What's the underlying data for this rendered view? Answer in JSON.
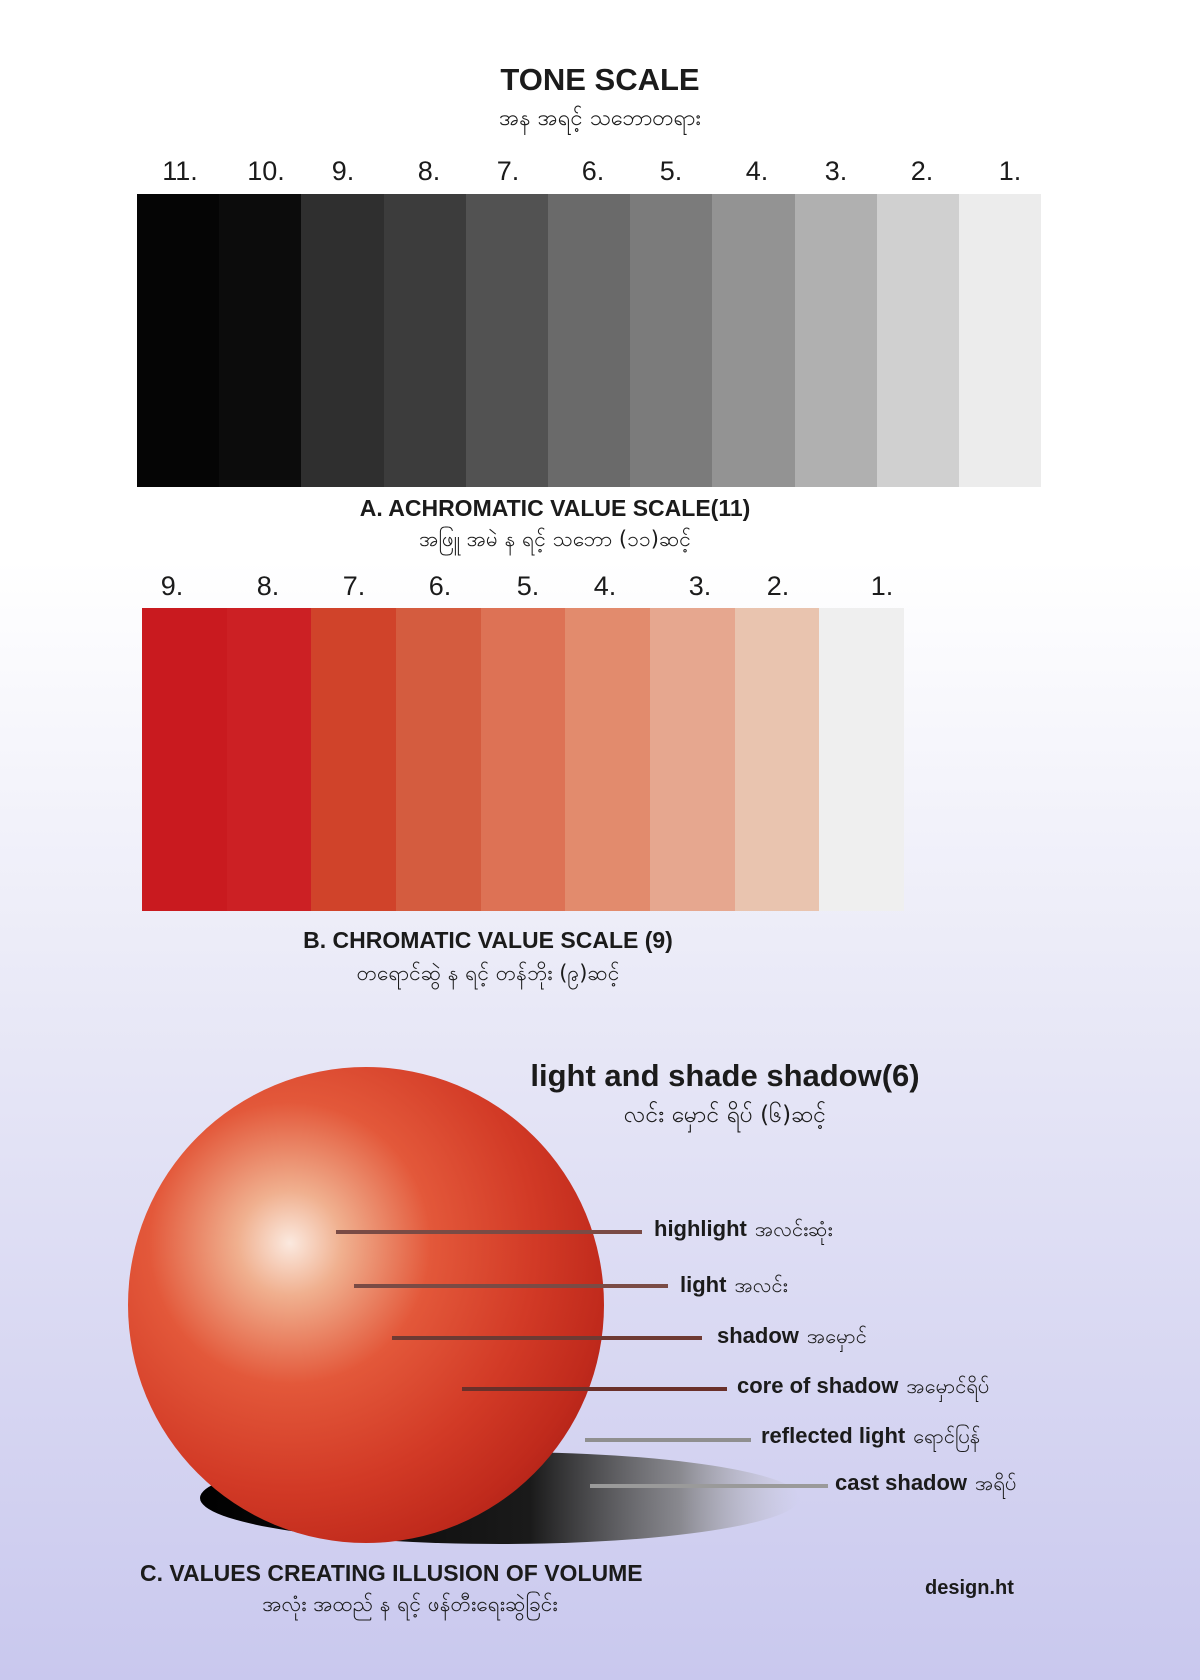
{
  "header": {
    "title": "TONE SCALE",
    "subtitle": "အန အရင့် သဘောတရား"
  },
  "achromatic": {
    "numbers": [
      "11.",
      "10.",
      "9.",
      "8.",
      "7.",
      "6.",
      "5.",
      "4.",
      "3.",
      "2.",
      "1."
    ],
    "swatch_colors": [
      "#050505",
      "#0c0c0c",
      "#2f2f2f",
      "#3c3c3c",
      "#525252",
      "#6a6a6a",
      "#7b7b7b",
      "#939393",
      "#b0b0b0",
      "#d0d0d0",
      "#ececec"
    ],
    "caption": "A. ACHROMATIC VALUE SCALE(11)",
    "caption_sub": "အဖြူ အမဲ န ရင့် သဘော (၁၁)ဆင့်"
  },
  "chromatic": {
    "numbers": [
      "9.",
      "8.",
      "7.",
      "6.",
      "5.",
      "4.",
      "3.",
      "2.",
      "1."
    ],
    "swatch_colors": [
      "#c91a1f",
      "#cc2024",
      "#d0432a",
      "#d45c3f",
      "#dd7255",
      "#e28b6d",
      "#e6a78f",
      "#e9c4af",
      "#efefef"
    ],
    "caption": "B. CHROMATIC VALUE SCALE (9)",
    "caption_sub": "တရောင်ဆွဲ န ရင့် တန်ဘိုး (၉)ဆင့်"
  },
  "volume": {
    "heading": "light and shade shadow(6)",
    "heading_sub": "လင်း မှောင် ရိပ် (၆)ဆင့်",
    "labels": [
      {
        "en": "highlight",
        "mm": "အလင်းဆုံး"
      },
      {
        "en": "light",
        "mm": "အလင်း"
      },
      {
        "en": "shadow",
        "mm": "အမှောင်"
      },
      {
        "en": "core of shadow",
        "mm": "အမှောင်ရိပ်"
      },
      {
        "en": "reflected light",
        "mm": "ရောင်ပြန်"
      },
      {
        "en": "cast shadow",
        "mm": "အရိပ်"
      }
    ],
    "caption": "C. VALUES CREATING ILLUSION OF VOLUME",
    "caption_sub": "အလုံး အထည် န ရင့် ဖန်တီးရေးဆွဲခြင်း"
  },
  "credit": "design.ht"
}
